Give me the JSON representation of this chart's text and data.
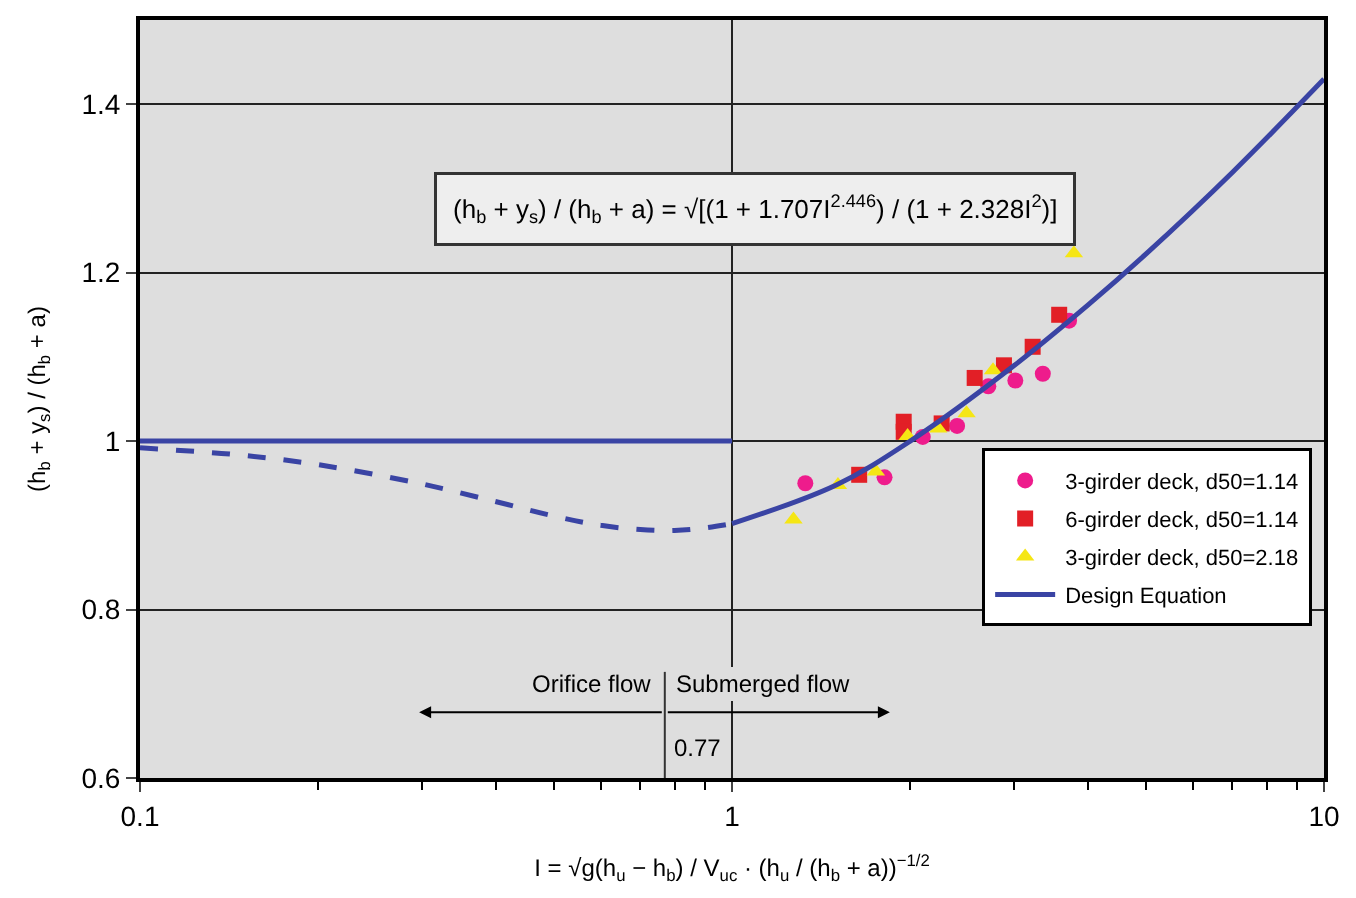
{
  "chart_data": {
    "type": "scatter",
    "xlabel": "I = √g(h$_{u}$ − h$_{b}$) / V$_{uc}$ · (h$_{u}$ / (h$_{b}$ + a))$^{−1/2}$",
    "ylabel": "(h$_{b}$ + y$_{s}$) / (h$_{b}$ + a)",
    "log": "x",
    "xlim": [
      0.1,
      10
    ],
    "xticks": [
      0.1,
      1,
      10
    ],
    "ylim": [
      0.6,
      1.5
    ],
    "yticks": [
      0.6,
      0.8,
      1,
      1.2,
      1.4
    ],
    "grid": true,
    "legend": "bottom right",
    "series": [
      {
        "name": "3-girder deck, d50=1.14",
        "marker": "circle",
        "color": "#ee1c8c",
        "x": [
          1.33,
          1.81,
          2.1,
          2.4,
          2.71,
          3.01,
          3.35,
          3.71
        ],
        "values": [
          0.95,
          0.957,
          1.005,
          1.018,
          1.065,
          1.072,
          1.08,
          1.143
        ]
      },
      {
        "name": "6-girder deck, d50=1.14",
        "marker": "square",
        "color": "#e21f26",
        "x": [
          1.64,
          1.95,
          1.95,
          2.26,
          2.57,
          2.88,
          3.22,
          3.57
        ],
        "values": [
          0.96,
          1.023,
          1.011,
          1.021,
          1.075,
          1.09,
          1.112,
          1.15
        ]
      },
      {
        "name": "3-girder deck, d50=2.18",
        "marker": "triangle",
        "color": "#f5e614",
        "x": [
          1.27,
          1.51,
          1.75,
          1.98,
          2.23,
          2.49,
          2.76,
          3.78
        ],
        "values": [
          0.907,
          0.948,
          0.964,
          1.006,
          1.015,
          1.033,
          1.084,
          1.223
        ]
      },
      {
        "name": "Design Equation",
        "type": "line",
        "marker": "none",
        "line_style": "solid",
        "color": "#3a44a4",
        "x": [
          1,
          1.5,
          2,
          3,
          4,
          5,
          7,
          10
        ],
        "values": [
          0.902,
          0.948,
          1.0,
          1.09,
          1.162,
          1.222,
          1.319,
          1.43
        ]
      },
      {
        "type": "line",
        "marker": "none",
        "line_style": "dashed",
        "color": "#3a44a4",
        "x": [
          0.1,
          0.15,
          0.2,
          0.3,
          0.4,
          0.5,
          0.6,
          0.7,
          0.8,
          0.9,
          1
        ],
        "values": [
          0.992,
          0.983,
          0.972,
          0.949,
          0.928,
          0.911,
          0.9,
          0.895,
          0.894,
          0.897,
          0.902
        ]
      },
      {
        "type": "line",
        "marker": "none",
        "line_style": "solid",
        "color": "#3a44a4",
        "x": [
          0.1,
          1
        ],
        "values": [
          1,
          1
        ]
      }
    ],
    "ref_lines": [
      {
        "axis": "x",
        "value": 0.77,
        "label": "0.77",
        "color": "#333333"
      }
    ],
    "annotations": [
      "(h$_{b}$ + y$_{s}$) / (h$_{b}$ + a) = √[(1 + 1.707I$^{2.446}$) / (1 + 2.328I$^{2}$)]",
      {
        "text": "Orifice flow",
        "x": 0.77,
        "y": 0.69
      },
      {
        "text": "Submerged flow",
        "x": 0.77,
        "y": 0.69
      }
    ]
  }
}
